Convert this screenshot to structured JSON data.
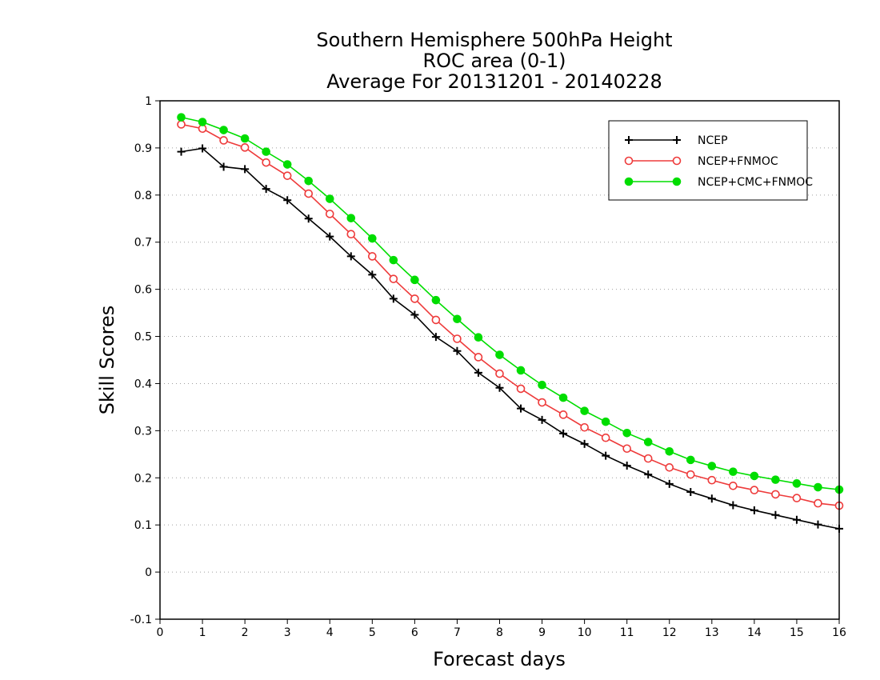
{
  "chart_data": {
    "type": "line",
    "title": [
      "Southern Hemisphere 500hPa Height",
      "ROC area (0-1)",
      "Average For 20131201 - 20140228"
    ],
    "xlabel": "Forecast days",
    "ylabel": "Skill Scores",
    "xlim": [
      0,
      16
    ],
    "ylim": [
      -0.1,
      1
    ],
    "xticks": [
      0,
      1,
      2,
      3,
      4,
      5,
      6,
      7,
      8,
      9,
      10,
      11,
      12,
      13,
      14,
      15,
      16
    ],
    "yticks": [
      -0.1,
      0,
      0.1,
      0.2,
      0.3,
      0.4,
      0.5,
      0.6,
      0.7,
      0.8,
      0.9,
      1
    ],
    "ytick_labels": [
      "-0.1",
      "0",
      "0.1",
      "0.2",
      "0.3",
      "0.4",
      "0.5",
      "0.6",
      "0.7",
      "0.8",
      "0.9",
      "1"
    ],
    "grid": true,
    "legend_position": "top-right",
    "x": [
      0.5,
      1,
      1.5,
      2,
      2.5,
      3,
      3.5,
      4,
      4.5,
      5,
      5.5,
      6,
      6.5,
      7,
      7.5,
      8,
      8.5,
      9,
      9.5,
      10,
      10.5,
      11,
      11.5,
      12,
      12.5,
      13,
      13.5,
      14,
      14.5,
      15,
      15.5,
      16
    ],
    "series": [
      {
        "name": "NCEP",
        "color": "#000000",
        "marker": "plus",
        "values": [
          0.892,
          0.899,
          0.86,
          0.855,
          0.813,
          0.789,
          0.75,
          0.712,
          0.67,
          0.631,
          0.58,
          0.546,
          0.499,
          0.469,
          0.423,
          0.391,
          0.347,
          0.323,
          0.294,
          0.272,
          0.247,
          0.226,
          0.207,
          0.187,
          0.17,
          0.156,
          0.142,
          0.131,
          0.121,
          0.111,
          0.101,
          0.092
        ]
      },
      {
        "name": "NCEP+FNMOC",
        "color": "#ee3b3b",
        "marker": "open-circle",
        "values": [
          0.95,
          0.941,
          0.916,
          0.901,
          0.869,
          0.841,
          0.803,
          0.76,
          0.717,
          0.67,
          0.622,
          0.58,
          0.535,
          0.495,
          0.456,
          0.421,
          0.389,
          0.36,
          0.334,
          0.307,
          0.285,
          0.262,
          0.241,
          0.222,
          0.207,
          0.195,
          0.183,
          0.174,
          0.165,
          0.157,
          0.146,
          0.141
        ]
      },
      {
        "name": "NCEP+CMC+FNMOC",
        "color": "#00dd00",
        "marker": "filled-circle",
        "values": [
          0.965,
          0.955,
          0.938,
          0.92,
          0.892,
          0.865,
          0.83,
          0.792,
          0.751,
          0.708,
          0.662,
          0.62,
          0.577,
          0.537,
          0.498,
          0.461,
          0.428,
          0.397,
          0.37,
          0.342,
          0.319,
          0.295,
          0.276,
          0.256,
          0.238,
          0.225,
          0.213,
          0.204,
          0.196,
          0.188,
          0.18,
          0.175
        ]
      }
    ]
  }
}
